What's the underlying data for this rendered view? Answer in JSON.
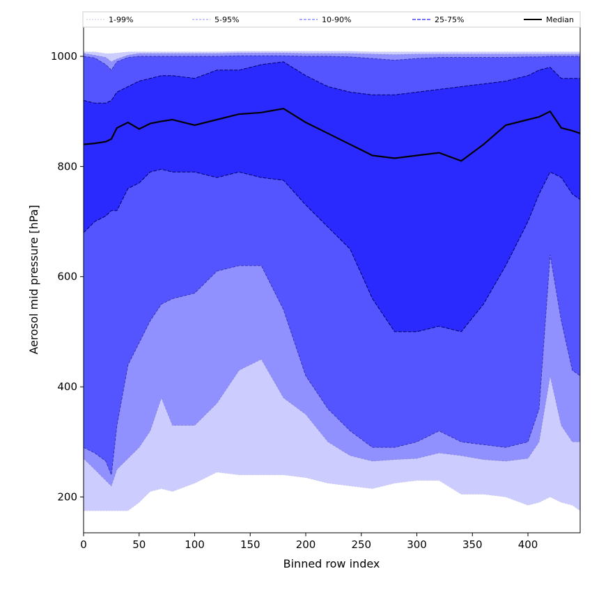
{
  "chart_data": {
    "type": "area",
    "xlabel": "Binned row index",
    "ylabel": "Aerosol mid pressure [hPa]",
    "xlim": [
      0,
      447
    ],
    "ylim": [
      135,
      1053
    ],
    "x_ticks": [
      0,
      50,
      100,
      150,
      200,
      250,
      300,
      350,
      400
    ],
    "y_ticks": [
      200,
      400,
      600,
      800,
      1000
    ],
    "grid": false,
    "legend_position": "top",
    "x": [
      0,
      10,
      20,
      25,
      30,
      40,
      50,
      60,
      70,
      80,
      100,
      120,
      140,
      160,
      180,
      200,
      220,
      240,
      260,
      280,
      300,
      320,
      340,
      360,
      380,
      400,
      410,
      420,
      430,
      440,
      447
    ],
    "series": [
      {
        "name": "1-99%",
        "color": "#ccccff",
        "fill": true,
        "lower": [
          175,
          175,
          175,
          175,
          175,
          175,
          190,
          210,
          215,
          210,
          225,
          245,
          240,
          240,
          240,
          235,
          225,
          220,
          215,
          225,
          230,
          230,
          205,
          205,
          200,
          185,
          190,
          200,
          190,
          185,
          175
        ],
        "upper": [
          1008,
          1008,
          1005,
          1005,
          1006,
          1008,
          1008,
          1008,
          1008,
          1008,
          1008,
          1008,
          1009,
          1009,
          1009,
          1009,
          1009,
          1009,
          1008,
          1008,
          1008,
          1008,
          1008,
          1008,
          1008,
          1008,
          1008,
          1008,
          1008,
          1008,
          1008
        ]
      },
      {
        "name": "5-95%",
        "color": "#9090ff",
        "fill": true,
        "lower": [
          270,
          250,
          230,
          220,
          250,
          270,
          290,
          320,
          380,
          330,
          330,
          370,
          430,
          450,
          380,
          350,
          300,
          275,
          265,
          268,
          270,
          280,
          275,
          268,
          265,
          270,
          300,
          420,
          330,
          300,
          300
        ],
        "upper": [
          1005,
          1002,
          998,
          990,
          995,
          1002,
          1005,
          1005,
          1005,
          1005,
          1005,
          1005,
          1006,
          1006,
          1006,
          1005,
          1005,
          1005,
          1004,
          1003,
          1004,
          1004,
          1004,
          1004,
          1004,
          1004,
          1004,
          1004,
          1004,
          1004,
          1004
        ]
      },
      {
        "name": "10-90%",
        "color": "#5555ff",
        "fill": true,
        "lower": [
          290,
          280,
          265,
          240,
          330,
          440,
          480,
          520,
          550,
          560,
          570,
          610,
          620,
          620,
          540,
          420,
          360,
          320,
          290,
          290,
          300,
          320,
          300,
          295,
          290,
          300,
          360,
          640,
          520,
          430,
          420
        ],
        "upper": [
          1000,
          997,
          985,
          975,
          990,
          998,
          1000,
          1000,
          1000,
          1000,
          1000,
          1000,
          1001,
          1001,
          1001,
          1000,
          1000,
          999,
          996,
          993,
          996,
          998,
          998,
          998,
          998,
          999,
          999,
          1000,
          1000,
          1000,
          1000
        ]
      },
      {
        "name": "25-75%",
        "color": "#2a2aff",
        "fill": true,
        "lower": [
          680,
          700,
          710,
          720,
          720,
          760,
          770,
          790,
          795,
          790,
          790,
          780,
          790,
          780,
          775,
          730,
          690,
          650,
          560,
          500,
          500,
          510,
          500,
          550,
          620,
          700,
          750,
          790,
          780,
          750,
          740
        ],
        "upper": [
          920,
          915,
          915,
          920,
          935,
          945,
          955,
          960,
          965,
          965,
          960,
          975,
          975,
          985,
          990,
          965,
          945,
          935,
          930,
          930,
          935,
          940,
          945,
          950,
          955,
          965,
          975,
          980,
          960,
          960,
          960
        ]
      },
      {
        "name": "Median",
        "color": "#000000",
        "fill": false,
        "values": [
          840,
          842,
          845,
          850,
          870,
          880,
          868,
          878,
          882,
          885,
          875,
          885,
          895,
          898,
          905,
          880,
          860,
          840,
          820,
          815,
          820,
          825,
          810,
          840,
          875,
          885,
          890,
          900,
          870,
          865,
          860
        ]
      }
    ]
  }
}
